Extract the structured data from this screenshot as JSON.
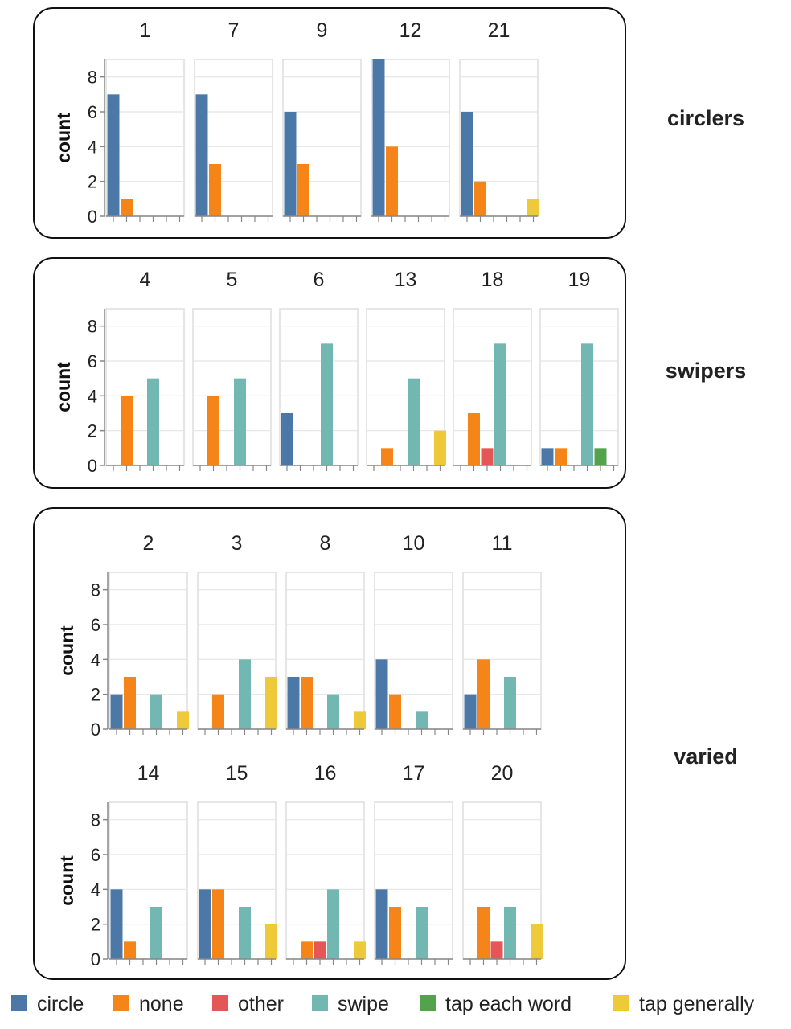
{
  "chart_data": {
    "type": "bar",
    "ylabel": "count",
    "ylim": [
      0,
      9
    ],
    "yticks": [
      0,
      2,
      4,
      6,
      8
    ],
    "categories": [
      "circle",
      "none",
      "other",
      "swipe",
      "tap each word",
      "tap generally"
    ],
    "colors": {
      "circle": "#4c78a8",
      "none": "#f58518",
      "other": "#e45756",
      "swipe": "#72b7b2",
      "tap each word": "#54a24b",
      "tap generally": "#eeca3b"
    },
    "groups": [
      {
        "label": "circlers",
        "rows": [
          [
            {
              "title": "1",
              "values": [
                7,
                1,
                0,
                0,
                0,
                0
              ]
            },
            {
              "title": "7",
              "values": [
                7,
                3,
                0,
                0,
                0,
                0
              ]
            },
            {
              "title": "9",
              "values": [
                6,
                3,
                0,
                0,
                0,
                0
              ]
            },
            {
              "title": "12",
              "values": [
                9,
                4,
                0,
                0,
                0,
                0
              ]
            },
            {
              "title": "21",
              "values": [
                6,
                2,
                0,
                0,
                0,
                1
              ]
            }
          ]
        ]
      },
      {
        "label": "swipers",
        "rows": [
          [
            {
              "title": "4",
              "values": [
                0,
                4,
                0,
                5,
                0,
                0
              ]
            },
            {
              "title": "5",
              "values": [
                0,
                4,
                0,
                5,
                0,
                0
              ]
            },
            {
              "title": "6",
              "values": [
                3,
                0,
                0,
                7,
                0,
                0
              ]
            },
            {
              "title": "13",
              "values": [
                0,
                1,
                0,
                5,
                0,
                2
              ]
            },
            {
              "title": "18",
              "values": [
                0,
                3,
                1,
                7,
                0,
                0
              ]
            },
            {
              "title": "19",
              "values": [
                1,
                1,
                0,
                7,
                1,
                0
              ]
            }
          ]
        ]
      },
      {
        "label": "varied",
        "rows": [
          [
            {
              "title": "2",
              "values": [
                2,
                3,
                0,
                2,
                0,
                1
              ]
            },
            {
              "title": "3",
              "values": [
                0,
                2,
                0,
                4,
                0,
                3
              ]
            },
            {
              "title": "8",
              "values": [
                3,
                3,
                0,
                2,
                0,
                1
              ]
            },
            {
              "title": "10",
              "values": [
                4,
                2,
                0,
                1,
                0,
                0
              ]
            },
            {
              "title": "11",
              "values": [
                2,
                4,
                0,
                3,
                0,
                0
              ]
            }
          ],
          [
            {
              "title": "14",
              "values": [
                4,
                1,
                0,
                3,
                0,
                0
              ]
            },
            {
              "title": "15",
              "values": [
                4,
                4,
                0,
                3,
                0,
                2
              ]
            },
            {
              "title": "16",
              "values": [
                0,
                1,
                1,
                4,
                0,
                1
              ]
            },
            {
              "title": "17",
              "values": [
                4,
                3,
                0,
                3,
                0,
                0
              ]
            },
            {
              "title": "20",
              "values": [
                0,
                3,
                1,
                3,
                0,
                2
              ]
            }
          ]
        ]
      }
    ],
    "legend": {
      "position": "bottom",
      "labels": [
        "circle",
        "none",
        "other",
        "swipe",
        "tap each word",
        "tap generally"
      ]
    }
  }
}
